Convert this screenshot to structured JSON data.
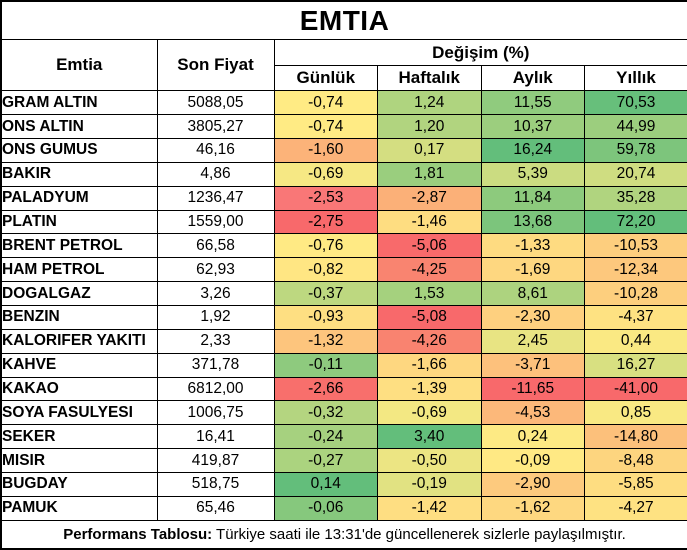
{
  "title": "EMTIA",
  "header": {
    "commodity": "Emtia",
    "last_price": "Son Fiyat",
    "change_group": "Değişim (%)",
    "periods": [
      "Günlük",
      "Haftalık",
      "Aylık",
      "Yıllık"
    ]
  },
  "footer": {
    "label": "Performans Tablosu:",
    "text": " Türkiye saati ile 13:31'de güncellenerek sizlerle paylaşılmıştır."
  },
  "chart_data": {
    "type": "table",
    "title": "EMTIA",
    "columns": [
      "Emtia",
      "Son Fiyat",
      "Günlük",
      "Haftalık",
      "Aylık",
      "Yıllık"
    ],
    "change_group_label": "Değişim (%)",
    "value_format": "comma-decimal",
    "color_scale": {
      "low": "#F8696B",
      "mid": "#FFEB84",
      "high": "#63BE7B"
    },
    "rows": [
      {
        "name": "GRAM ALTIN",
        "price": "5088,05",
        "changes": [
          "-0,74",
          "1,24",
          "11,55",
          "70,53"
        ],
        "colors": [
          "#FFEB84",
          "#AFD47F",
          "#90CB7E",
          "#67BF7B"
        ]
      },
      {
        "name": "ONS ALTIN",
        "price": "3805,27",
        "changes": [
          "-0,74",
          "1,20",
          "10,37",
          "44,99"
        ],
        "colors": [
          "#FFEB84",
          "#B1D47F",
          "#9CCE7E",
          "#9CCE7E"
        ]
      },
      {
        "name": "ONS GUMUS",
        "price": "46,16",
        "changes": [
          "-1,60",
          "0,17",
          "16,24",
          "59,78"
        ],
        "colors": [
          "#FCB379",
          "#D4DE81",
          "#63BE7B",
          "#7DC57C"
        ]
      },
      {
        "name": "BAKIR",
        "price": "4,86",
        "changes": [
          "-0,69",
          "1,81",
          "5,39",
          "20,74"
        ],
        "colors": [
          "#F6E884",
          "#9ACE7E",
          "#CBDC81",
          "#CFDD81"
        ]
      },
      {
        "name": "PALADYUM",
        "price": "1236,47",
        "changes": [
          "-2,53",
          "-2,87",
          "11,84",
          "35,28"
        ],
        "colors": [
          "#F97777",
          "#FBB078",
          "#8DCA7D",
          "#B0D47F"
        ]
      },
      {
        "name": "PLATIN",
        "price": "1559,00",
        "changes": [
          "-2,75",
          "-1,46",
          "13,68",
          "72,20"
        ],
        "colors": [
          "#F8696B",
          "#FEDD81",
          "#7CC57C",
          "#63BE7B"
        ]
      },
      {
        "name": "BRENT PETROL",
        "price": "66,58",
        "changes": [
          "-0,76",
          "-5,06",
          "-1,33",
          "-10,53"
        ],
        "colors": [
          "#FFEA84",
          "#F86A6B",
          "#FEDB81",
          "#FDCE7E"
        ]
      },
      {
        "name": "HAM PETROL",
        "price": "62,93",
        "changes": [
          "-0,82",
          "-4,25",
          "-1,69",
          "-12,34"
        ],
        "colors": [
          "#FFE683",
          "#F98470",
          "#FED780",
          "#FDC87D"
        ]
      },
      {
        "name": "DOGALGAZ",
        "price": "3,26",
        "changes": [
          "-0,37",
          "1,53",
          "8,61",
          "-10,28"
        ],
        "colors": [
          "#BDD880",
          "#A5D17E",
          "#ADD37F",
          "#FDCF7E"
        ]
      },
      {
        "name": "BENZIN",
        "price": "1,92",
        "changes": [
          "-0,93",
          "-5,08",
          "-2,30",
          "-4,37"
        ],
        "colors": [
          "#FEDF82",
          "#F8696B",
          "#FED07F",
          "#FEE282"
        ]
      },
      {
        "name": "KALORIFER YAKITI",
        "price": "2,33",
        "changes": [
          "-1,32",
          "-4,26",
          "2,45",
          "0,44"
        ],
        "colors": [
          "#FDC57D",
          "#F98370",
          "#E8E483",
          "#FAE983"
        ]
      },
      {
        "name": "KAHVE",
        "price": "371,78",
        "changes": [
          "-0,11",
          "-1,66",
          "-3,71",
          "16,27"
        ],
        "colors": [
          "#8ECA7E",
          "#FED780",
          "#FDC17C",
          "#D8E081"
        ]
      },
      {
        "name": "KAKAO",
        "price": "6812,00",
        "changes": [
          "-2,66",
          "-1,39",
          "-11,65",
          "-41,00"
        ],
        "colors": [
          "#F86F6C",
          "#FEDF82",
          "#F8696B",
          "#F8696B"
        ]
      },
      {
        "name": "SOYA FASULYESI",
        "price": "1006,75",
        "changes": [
          "-0,32",
          "-0,69",
          "-4,53",
          "0,85"
        ],
        "colors": [
          "#B4D580",
          "#F3E883",
          "#FCB87A",
          "#F9E983"
        ]
      },
      {
        "name": "SEKER",
        "price": "16,41",
        "changes": [
          "-0,24",
          "3,40",
          "0,24",
          "-14,80"
        ],
        "colors": [
          "#A6D17F",
          "#63BE7B",
          "#FDEA84",
          "#FCC07B"
        ]
      },
      {
        "name": "MISIR",
        "price": "419,87",
        "changes": [
          "-0,27",
          "-0,50",
          "-0,09",
          "-8,48"
        ],
        "colors": [
          "#ABD37F",
          "#ECE583",
          "#FFE984",
          "#FDD57F"
        ]
      },
      {
        "name": "BUGDAY",
        "price": "518,75",
        "changes": [
          "0,14",
          "-0,19",
          "-2,90",
          "-5,85"
        ],
        "colors": [
          "#63BE7B",
          "#E1E282",
          "#FDCA7E",
          "#FEDD81"
        ]
      },
      {
        "name": "PAMUK",
        "price": "65,46",
        "changes": [
          "-0,06",
          "-1,42",
          "-1,62",
          "-4,27"
        ],
        "colors": [
          "#86C87D",
          "#FEDE82",
          "#FED880",
          "#FEE282"
        ]
      }
    ]
  }
}
